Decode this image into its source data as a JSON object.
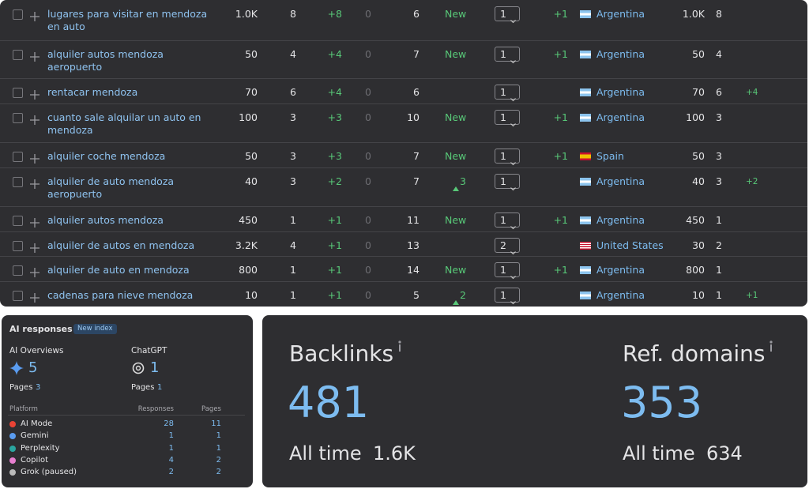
{
  "keywords_table": {
    "rows": [
      {
        "keyword": "lugares para visitar en mendoza en auto",
        "volume": "1.0K",
        "kd": "8",
        "change": "+8",
        "zero": "0",
        "results": "6",
        "status": "New",
        "rise": null,
        "position": "1",
        "position_change": "+1",
        "country": "Argentina",
        "country_volume": "1.0K",
        "country_kd": "8",
        "extra": null
      },
      {
        "keyword": "alquiler autos mendoza aeropuerto",
        "volume": "50",
        "kd": "4",
        "change": "+4",
        "zero": "0",
        "results": "7",
        "status": "New",
        "rise": null,
        "position": "1",
        "position_change": "+1",
        "country": "Argentina",
        "country_volume": "50",
        "country_kd": "4",
        "extra": null
      },
      {
        "keyword": "rentacar mendoza",
        "volume": "70",
        "kd": "6",
        "change": "+4",
        "zero": "0",
        "results": "6",
        "status": null,
        "rise": null,
        "position": "1",
        "position_change": null,
        "country": "Argentina",
        "country_volume": "70",
        "country_kd": "6",
        "extra": "+4"
      },
      {
        "keyword": "cuanto sale alquilar un auto en mendoza",
        "volume": "100",
        "kd": "3",
        "change": "+3",
        "zero": "0",
        "results": "10",
        "status": "New",
        "rise": null,
        "position": "1",
        "position_change": "+1",
        "country": "Argentina",
        "country_volume": "100",
        "country_kd": "3",
        "extra": null
      },
      {
        "keyword": "alquiler coche mendoza",
        "volume": "50",
        "kd": "3",
        "change": "+3",
        "zero": "0",
        "results": "7",
        "status": "New",
        "rise": null,
        "position": "1",
        "position_change": "+1",
        "country": "Spain",
        "country_volume": "50",
        "country_kd": "3",
        "extra": null
      },
      {
        "keyword": "alquiler de auto mendoza aeropuerto",
        "volume": "40",
        "kd": "3",
        "change": "+2",
        "zero": "0",
        "results": "7",
        "status": null,
        "rise": "3",
        "position": "1",
        "position_change": null,
        "country": "Argentina",
        "country_volume": "40",
        "country_kd": "3",
        "extra": "+2"
      },
      {
        "keyword": "alquiler autos mendoza",
        "volume": "450",
        "kd": "1",
        "change": "+1",
        "zero": "0",
        "results": "11",
        "status": "New",
        "rise": null,
        "position": "1",
        "position_change": "+1",
        "country": "Argentina",
        "country_volume": "450",
        "country_kd": "1",
        "extra": null
      },
      {
        "keyword": "alquiler de autos en mendoza",
        "volume": "3.2K",
        "kd": "4",
        "change": "+1",
        "zero": "0",
        "results": "13",
        "status": null,
        "rise": null,
        "position": "2",
        "position_change": null,
        "country": "United States",
        "country_volume": "30",
        "country_kd": "2",
        "extra": null
      },
      {
        "keyword": "alquiler de auto en mendoza",
        "volume": "800",
        "kd": "1",
        "change": "+1",
        "zero": "0",
        "results": "14",
        "status": "New",
        "rise": null,
        "position": "1",
        "position_change": "+1",
        "country": "Argentina",
        "country_volume": "800",
        "country_kd": "1",
        "extra": null
      },
      {
        "keyword": "cadenas para nieve mendoza",
        "volume": "10",
        "kd": "1",
        "change": "+1",
        "zero": "0",
        "results": "5",
        "status": null,
        "rise": "2",
        "position": "1",
        "position_change": null,
        "country": "Argentina",
        "country_volume": "10",
        "country_kd": "1",
        "extra": "+1"
      }
    ]
  },
  "ai_panel": {
    "title": "AI responses",
    "badge": "New index",
    "overviews": {
      "label": "AI Overviews",
      "value": "5",
      "pages_label": "Pages",
      "pages": "3"
    },
    "chatgpt": {
      "label": "ChatGPT",
      "value": "1",
      "pages_label": "Pages",
      "pages": "1"
    },
    "table": {
      "headers": [
        "Platform",
        "Responses",
        "Pages"
      ],
      "rows": [
        [
          "AI Mode",
          "28",
          "11"
        ],
        [
          "Gemini",
          "1",
          "1"
        ],
        [
          "Perplexity",
          "1",
          "1"
        ],
        [
          "Copilot",
          "4",
          "2"
        ],
        [
          "Grok (paused)",
          "2",
          "2"
        ]
      ]
    }
  },
  "backlinks_panel": {
    "backlinks": {
      "label": "Backlinks",
      "value": "481",
      "sub_label": "All time",
      "sub_value": "1.6K"
    },
    "ref_domains": {
      "label": "Ref. domains",
      "value": "353",
      "sub_label": "All time",
      "sub_value": "634"
    }
  }
}
